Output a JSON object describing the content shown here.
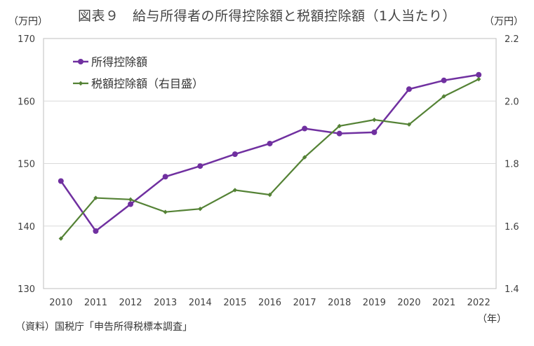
{
  "chart_data": {
    "type": "line",
    "title": "図表９　給与所得者の所得控除額と税額控除額（1人当たり）",
    "categories": [
      "2010",
      "2011",
      "2012",
      "2013",
      "2014",
      "2015",
      "2016",
      "2017",
      "2018",
      "2019",
      "2020",
      "2021",
      "2022"
    ],
    "series": [
      {
        "name": "所得控除額",
        "axis": "left",
        "color": "#7030a0",
        "marker": "circle",
        "values": [
          147.2,
          139.2,
          143.5,
          147.9,
          149.6,
          151.5,
          153.2,
          155.6,
          154.8,
          155.0,
          161.9,
          163.3,
          164.2
        ]
      },
      {
        "name": "税額控除額（右目盛）",
        "axis": "right",
        "color": "#548235",
        "marker": "diamond",
        "values": [
          1.56,
          1.69,
          1.685,
          1.645,
          1.655,
          1.715,
          1.7,
          1.82,
          1.92,
          1.94,
          1.925,
          2.015,
          2.07
        ]
      }
    ],
    "y_left": {
      "unit": "（万円）",
      "ylim": [
        130,
        170
      ],
      "ticks": [
        "130",
        "140",
        "150",
        "160",
        "170"
      ]
    },
    "y_right": {
      "unit": "（万円）",
      "ylim": [
        1.4,
        2.2
      ],
      "ticks": [
        "1.4",
        "1.6",
        "1.8",
        "2.0",
        "2.2"
      ]
    },
    "x_unit": "（年）",
    "grid": true,
    "legend": "top-left",
    "source": "（資料）国税庁「申告所得税標本調査」"
  }
}
